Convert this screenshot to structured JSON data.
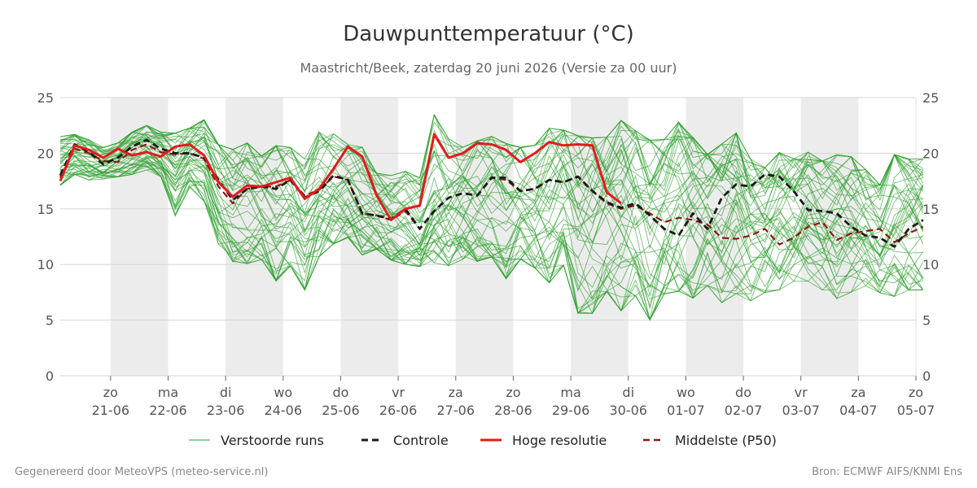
{
  "chart_data": {
    "type": "line",
    "title": "Dauwpunttemperatuur (°C)",
    "subtitle": "Maastricht/Beek, zaterdag 20 juni 2026 (Versie za 00 uur)",
    "ylim": [
      0,
      25
    ],
    "y_ticks": [
      0,
      5,
      10,
      15,
      20,
      25
    ],
    "x_range": [
      "2026-06-20 03:00",
      "2026-07-05 00:00"
    ],
    "x_tick_labels": [
      {
        "day": "zo",
        "date": "21-06"
      },
      {
        "day": "ma",
        "date": "22-06"
      },
      {
        "day": "di",
        "date": "23-06"
      },
      {
        "day": "wo",
        "date": "24-06"
      },
      {
        "day": "do",
        "date": "25-06"
      },
      {
        "day": "vr",
        "date": "26-06"
      },
      {
        "day": "za",
        "date": "27-06"
      },
      {
        "day": "zo",
        "date": "28-06"
      },
      {
        "day": "ma",
        "date": "29-06"
      },
      {
        "day": "di",
        "date": "30-06"
      },
      {
        "day": "wo",
        "date": "01-07"
      },
      {
        "day": "do",
        "date": "02-07"
      },
      {
        "day": "vr",
        "date": "03-07"
      },
      {
        "day": "za",
        "date": "04-07"
      },
      {
        "day": "zo",
        "date": "05-07"
      }
    ],
    "shaded_days": [
      "21-06",
      "23-06",
      "25-06",
      "27-06",
      "29-06",
      "01-07",
      "03-07"
    ],
    "grid": true,
    "legend": "bottom",
    "series": [
      {
        "name": "Controle",
        "color": "#1a1a1a",
        "style": "dashed",
        "x_start": "2026-06-20 03:00",
        "step_hours": 6,
        "values": [
          18.0,
          20.8,
          20.1,
          19.0,
          19.6,
          20.6,
          21.2,
          20.4,
          20.0,
          20.0,
          19.6,
          17.6,
          15.8,
          16.8,
          17.0,
          16.8,
          17.6,
          16.0,
          16.6,
          18.0,
          17.6,
          14.6,
          14.4,
          14.1,
          15.0,
          13.2,
          14.8,
          16.0,
          16.4,
          16.2,
          17.8,
          17.8,
          16.6,
          16.8,
          17.6,
          17.4,
          17.9,
          16.6,
          15.6,
          15.1,
          15.5,
          14.4,
          13.2,
          12.6,
          14.6,
          13.2,
          16.0,
          17.2,
          17.0,
          18.1,
          17.9,
          16.6,
          14.9,
          14.8,
          14.6,
          13.4,
          12.6,
          12.4,
          11.6,
          13.2,
          14.0
        ]
      },
      {
        "name": "Hoge resolutie",
        "color": "#e41a1c",
        "style": "solid",
        "x_start": "2026-06-20 03:00",
        "step_hours": 6,
        "values": [
          17.5,
          20.7,
          20.3,
          19.6,
          20.4,
          19.8,
          20.1,
          19.7,
          20.6,
          20.8,
          19.8,
          17.4,
          16.1,
          17.1,
          17.0,
          17.4,
          17.8,
          15.9,
          16.8,
          18.6,
          20.6,
          19.7,
          16.2,
          14.0,
          15.0,
          15.3,
          21.7,
          19.6,
          20.0,
          20.9,
          20.8,
          20.3,
          19.2,
          20.0,
          21.0,
          20.7,
          20.8,
          20.7,
          16.5,
          15.5
        ]
      },
      {
        "name": "Middelste (P50)",
        "color": "#8b1a10",
        "style": "dashed",
        "x_start": "2026-06-20 03:00",
        "step_hours": 6,
        "values": [
          17.8,
          20.4,
          20.0,
          19.3,
          19.2,
          20.3,
          20.8,
          20.1,
          19.9,
          20.0,
          19.5,
          17.0,
          15.5,
          16.8,
          17.0,
          17.0,
          17.6,
          16.2,
          16.7,
          17.9,
          17.6,
          14.6,
          14.4,
          14.0,
          14.8,
          13.2,
          14.8,
          16.0,
          16.4,
          16.2,
          17.8,
          17.6,
          16.6,
          16.8,
          17.6,
          17.4,
          17.9,
          16.6,
          15.5,
          15.0,
          15.3,
          14.6,
          13.8,
          14.2,
          14.0,
          13.6,
          12.4,
          12.3,
          12.6,
          13.2,
          11.8,
          12.4,
          13.4,
          13.8,
          12.2,
          12.8,
          13.0,
          13.2,
          12.0,
          12.8,
          13.4
        ]
      },
      {
        "name": "Verstoorde runs",
        "color": "#2ca02c",
        "style": "thin",
        "members": 50,
        "x_start": "2026-06-20 03:00",
        "step_hours": 6,
        "envelope": [
          [
            17.0,
            21.6
          ],
          [
            18.0,
            21.8
          ],
          [
            17.5,
            21.3
          ],
          [
            17.6,
            20.6
          ],
          [
            17.8,
            21.0
          ],
          [
            18.0,
            22.0
          ],
          [
            18.4,
            22.6
          ],
          [
            17.8,
            22.0
          ],
          [
            14.2,
            22.0
          ],
          [
            16.8,
            22.4
          ],
          [
            15.5,
            23.2
          ],
          [
            11.6,
            21.0
          ],
          [
            10.0,
            20.6
          ],
          [
            9.8,
            21.2
          ],
          [
            10.2,
            20.0
          ],
          [
            8.2,
            21.0
          ],
          [
            9.6,
            20.8
          ],
          [
            7.4,
            19.8
          ],
          [
            10.4,
            22.2
          ],
          [
            11.6,
            22.0
          ],
          [
            12.2,
            21.0
          ],
          [
            10.6,
            20.8
          ],
          [
            11.2,
            18.4
          ],
          [
            10.2,
            18.2
          ],
          [
            9.8,
            18.6
          ],
          [
            9.6,
            18.0
          ],
          [
            9.8,
            23.8
          ],
          [
            9.6,
            21.6
          ],
          [
            10.2,
            20.8
          ],
          [
            10.0,
            21.4
          ],
          [
            10.4,
            21.8
          ],
          [
            8.4,
            21.2
          ],
          [
            10.2,
            20.8
          ],
          [
            9.4,
            21.0
          ],
          [
            8.0,
            22.6
          ],
          [
            9.6,
            22.4
          ],
          [
            5.2,
            22.0
          ],
          [
            5.2,
            21.8
          ],
          [
            7.2,
            21.8
          ],
          [
            5.4,
            23.4
          ],
          [
            6.8,
            22.4
          ],
          [
            4.6,
            21.6
          ],
          [
            7.0,
            21.6
          ],
          [
            7.2,
            23.2
          ],
          [
            6.6,
            21.8
          ],
          [
            7.8,
            20.2
          ],
          [
            6.2,
            21.2
          ],
          [
            7.0,
            22.2
          ],
          [
            6.4,
            19.8
          ],
          [
            7.2,
            19.0
          ],
          [
            7.4,
            20.4
          ],
          [
            8.2,
            19.8
          ],
          [
            8.2,
            20.4
          ],
          [
            7.4,
            19.6
          ],
          [
            6.6,
            20.2
          ],
          [
            7.2,
            20.0
          ],
          [
            7.8,
            18.8
          ],
          [
            7.2,
            17.4
          ],
          [
            6.8,
            20.2
          ],
          [
            7.4,
            19.8
          ],
          [
            7.4,
            19.8
          ]
        ]
      }
    ]
  },
  "legend": {
    "items": [
      {
        "label": "Verstoorde runs"
      },
      {
        "label": "Controle"
      },
      {
        "label": "Hoge resolutie"
      },
      {
        "label": "Middelste (P50)"
      }
    ]
  },
  "footer": {
    "left": "Gegenereerd door MeteoVPS (meteo-service.nl)",
    "right": "Bron: ECMWF AIFS/KNMI Ens"
  }
}
